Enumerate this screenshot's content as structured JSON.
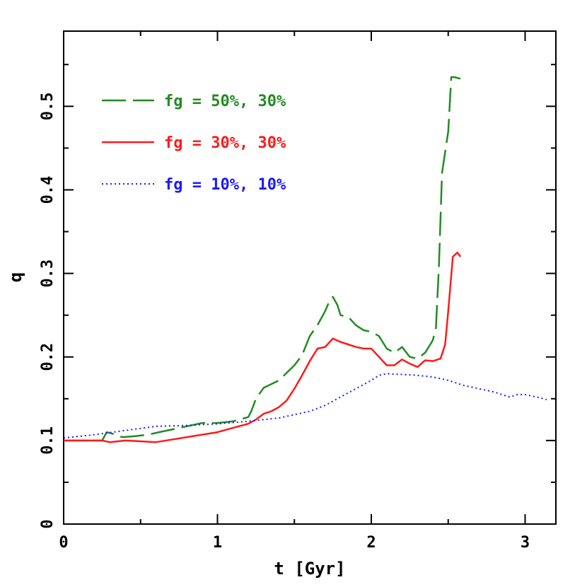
{
  "chart_data": {
    "type": "line",
    "title": "",
    "xlabel": "t [Gyr]",
    "ylabel": "q",
    "xlim": [
      0,
      3.2
    ],
    "ylim": [
      0,
      0.59
    ],
    "xticks": [
      0,
      1,
      2,
      3
    ],
    "xtick_labels": [
      "0",
      "1",
      "2",
      "3"
    ],
    "yticks": [
      0,
      0.1,
      0.2,
      0.3,
      0.4,
      0.5
    ],
    "ytick_labels": [
      "0",
      "0.1",
      "0.2",
      "0.3",
      "0.4",
      "0.5"
    ],
    "grid": false,
    "legend_position": "top-left",
    "series": [
      {
        "name": "fg = 50%, 30%",
        "color": "#228B22",
        "style": "dashed",
        "x": [
          0.0,
          0.25,
          0.28,
          0.32,
          0.38,
          0.45,
          0.55,
          0.62,
          0.7,
          0.8,
          0.9,
          1.0,
          1.1,
          1.2,
          1.22,
          1.25,
          1.3,
          1.4,
          1.5,
          1.55,
          1.6,
          1.65,
          1.7,
          1.73,
          1.75,
          1.78,
          1.8,
          1.85,
          1.9,
          1.95,
          2.0,
          2.05,
          2.1,
          2.15,
          2.2,
          2.25,
          2.3,
          2.35,
          2.4,
          2.42,
          2.44,
          2.46,
          2.5,
          2.52,
          2.54,
          2.58
        ],
        "y": [
          0.1,
          0.1,
          0.11,
          0.108,
          0.104,
          0.105,
          0.107,
          0.11,
          0.113,
          0.117,
          0.121,
          0.121,
          0.123,
          0.128,
          0.135,
          0.15,
          0.163,
          0.172,
          0.19,
          0.202,
          0.225,
          0.238,
          0.255,
          0.268,
          0.272,
          0.262,
          0.25,
          0.248,
          0.238,
          0.232,
          0.23,
          0.225,
          0.21,
          0.205,
          0.212,
          0.2,
          0.198,
          0.205,
          0.22,
          0.235,
          0.31,
          0.42,
          0.47,
          0.535,
          0.535,
          0.533
        ]
      },
      {
        "name": "fg = 30%, 30%",
        "color": "#ff1a1a",
        "style": "solid",
        "x": [
          0.0,
          0.25,
          0.3,
          0.4,
          0.5,
          0.6,
          0.7,
          0.8,
          0.9,
          1.0,
          1.1,
          1.2,
          1.25,
          1.3,
          1.35,
          1.4,
          1.45,
          1.5,
          1.55,
          1.6,
          1.65,
          1.7,
          1.75,
          1.8,
          1.85,
          1.9,
          1.95,
          2.0,
          2.05,
          2.1,
          2.15,
          2.2,
          2.25,
          2.3,
          2.35,
          2.4,
          2.45,
          2.48,
          2.5,
          2.53,
          2.56,
          2.58
        ],
        "y": [
          0.1,
          0.1,
          0.098,
          0.1,
          0.099,
          0.098,
          0.101,
          0.104,
          0.107,
          0.11,
          0.115,
          0.12,
          0.125,
          0.132,
          0.135,
          0.14,
          0.148,
          0.162,
          0.178,
          0.195,
          0.21,
          0.212,
          0.222,
          0.218,
          0.215,
          0.212,
          0.21,
          0.21,
          0.2,
          0.19,
          0.19,
          0.197,
          0.192,
          0.188,
          0.196,
          0.195,
          0.198,
          0.215,
          0.255,
          0.32,
          0.325,
          0.32
        ]
      },
      {
        "name": "fg = 10%, 10%",
        "color": "#1a1aff",
        "style": "dotted",
        "x": [
          0.0,
          0.2,
          0.4,
          0.6,
          0.8,
          1.0,
          1.2,
          1.4,
          1.6,
          1.7,
          1.8,
          1.9,
          2.0,
          2.05,
          2.1,
          2.2,
          2.3,
          2.4,
          2.5,
          2.6,
          2.7,
          2.8,
          2.9,
          2.95,
          3.0,
          3.1,
          3.14
        ],
        "y": [
          0.103,
          0.107,
          0.112,
          0.117,
          0.118,
          0.12,
          0.123,
          0.127,
          0.135,
          0.142,
          0.152,
          0.162,
          0.172,
          0.178,
          0.18,
          0.179,
          0.178,
          0.176,
          0.172,
          0.166,
          0.162,
          0.158,
          0.152,
          0.155,
          0.155,
          0.151,
          0.149
        ]
      }
    ]
  }
}
